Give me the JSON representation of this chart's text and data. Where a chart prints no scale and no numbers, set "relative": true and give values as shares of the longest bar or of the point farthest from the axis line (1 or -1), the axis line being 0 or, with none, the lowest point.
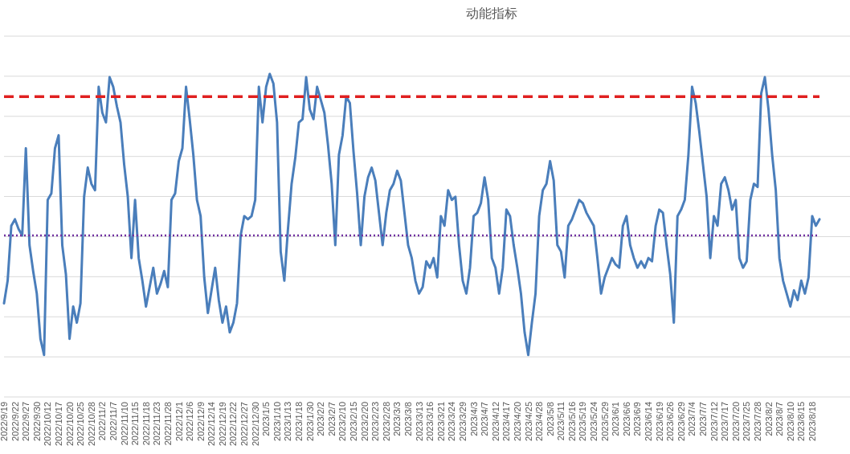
{
  "chart_data": {
    "type": "line",
    "title": "动能指标",
    "relative": true,
    "grid": "y",
    "categories": [
      "2022/9/19",
      null,
      null,
      "2022/9/22",
      null,
      null,
      "2022/9/27",
      null,
      null,
      "2022/9/30",
      null,
      null,
      "2022/10/12",
      null,
      null,
      "2022/10/17",
      null,
      null,
      "2022/10/20",
      null,
      null,
      "2022/10/25",
      null,
      null,
      "2022/10/28",
      null,
      null,
      "2022/11/2",
      null,
      null,
      "2022/11/7",
      null,
      null,
      "2022/11/10",
      null,
      null,
      "2022/11/15",
      null,
      null,
      "2022/11/18",
      null,
      null,
      "2022/11/23",
      null,
      null,
      "2022/11/28",
      null,
      null,
      "2022/12/1",
      null,
      null,
      "2022/12/6",
      null,
      null,
      "2022/12/9",
      null,
      null,
      "2022/12/14",
      null,
      null,
      "2022/12/19",
      null,
      null,
      "2022/12/22",
      null,
      null,
      "2022/12/27",
      null,
      null,
      "2022/12/30",
      null,
      null,
      "2023/1/5",
      null,
      null,
      "2023/1/10",
      null,
      null,
      "2023/1/13",
      null,
      null,
      "2023/1/18",
      null,
      null,
      "2023/1/30",
      null,
      null,
      "2023/2/2",
      null,
      null,
      "2023/2/7",
      null,
      null,
      "2023/2/10",
      null,
      null,
      "2023/2/15",
      null,
      null,
      "2023/2/20",
      null,
      null,
      "2023/2/23",
      null,
      null,
      "2023/2/28",
      null,
      null,
      "2023/3/3",
      null,
      null,
      "2023/3/8",
      null,
      null,
      "2023/3/13",
      null,
      null,
      "2023/3/16",
      null,
      null,
      "2023/3/21",
      null,
      null,
      "2023/3/24",
      null,
      null,
      "2023/3/29",
      null,
      null,
      "2023/4/3",
      null,
      null,
      "2023/4/7",
      null,
      null,
      "2023/4/12",
      null,
      null,
      "2023/4/17",
      null,
      null,
      "2023/4/20",
      null,
      null,
      "2023/4/25",
      null,
      null,
      "2023/4/28",
      null,
      null,
      "2023/5/8",
      null,
      null,
      "2023/5/11",
      null,
      null,
      "2023/5/16",
      null,
      null,
      "2023/5/19",
      null,
      null,
      "2023/5/24",
      null,
      null,
      "2023/5/29",
      null,
      null,
      "2023/6/1",
      null,
      null,
      "2023/6/6",
      null,
      null,
      "2023/6/9",
      null,
      null,
      "2023/6/14",
      null,
      null,
      "2023/6/19",
      null,
      null,
      "2023/6/26",
      null,
      null,
      "2023/6/29",
      null,
      null,
      "2023/7/4",
      null,
      null,
      "2023/7/7",
      null,
      null,
      "2023/7/12",
      null,
      null,
      "2023/7/17",
      null,
      null,
      "2023/7/20",
      null,
      null,
      "2023/7/25",
      null,
      null,
      "2023/7/28",
      null,
      null,
      "2023/8/2",
      null,
      null,
      "2023/8/7",
      null,
      null,
      "2023/8/10",
      null,
      null,
      "2023/8/15",
      null,
      null,
      "2023/8/18",
      null,
      null
    ],
    "series": [
      {
        "color": "#4a7ebb",
        "values": [
          0.29,
          0.36,
          0.53,
          0.55,
          0.52,
          0.5,
          0.77,
          0.47,
          0.39,
          0.32,
          0.18,
          0.13,
          0.61,
          0.63,
          0.77,
          0.81,
          0.47,
          0.38,
          0.18,
          0.28,
          0.23,
          0.29,
          0.62,
          0.71,
          0.66,
          0.64,
          0.96,
          0.88,
          0.85,
          0.99,
          0.96,
          0.9,
          0.85,
          0.72,
          0.62,
          0.43,
          0.61,
          0.43,
          0.36,
          0.28,
          0.34,
          0.4,
          0.32,
          0.35,
          0.39,
          0.34,
          0.61,
          0.63,
          0.73,
          0.77,
          0.96,
          0.86,
          0.75,
          0.61,
          0.56,
          0.37,
          0.26,
          0.33,
          0.4,
          0.3,
          0.23,
          0.28,
          0.2,
          0.23,
          0.29,
          0.5,
          0.56,
          0.55,
          0.56,
          0.61,
          0.96,
          0.85,
          0.96,
          1,
          0.97,
          0.85,
          0.45,
          0.36,
          0.52,
          0.66,
          0.74,
          0.85,
          0.86,
          0.99,
          0.89,
          0.86,
          0.96,
          0.92,
          0.88,
          0.78,
          0.66,
          0.47,
          0.75,
          0.81,
          0.93,
          0.91,
          0.76,
          0.63,
          0.47,
          0.62,
          0.68,
          0.71,
          0.67,
          0.57,
          0.47,
          0.57,
          0.64,
          0.66,
          0.7,
          0.67,
          0.57,
          0.47,
          0.43,
          0.36,
          0.32,
          0.34,
          0.42,
          0.4,
          0.43,
          0.37,
          0.56,
          0.53,
          0.64,
          0.61,
          0.62,
          0.47,
          0.36,
          0.32,
          0.4,
          0.56,
          0.57,
          0.6,
          0.68,
          0.61,
          0.43,
          0.4,
          0.32,
          0.4,
          0.58,
          0.56,
          0.47,
          0.4,
          0.32,
          0.2,
          0.13,
          0.23,
          0.32,
          0.56,
          0.64,
          0.66,
          0.73,
          0.67,
          0.47,
          0.45,
          0.37,
          0.53,
          0.55,
          0.58,
          0.61,
          0.6,
          0.57,
          0.55,
          0.53,
          0.43,
          0.32,
          0.37,
          0.4,
          0.43,
          0.41,
          0.4,
          0.53,
          0.56,
          0.47,
          0.43,
          0.4,
          0.42,
          0.4,
          0.43,
          0.42,
          0.53,
          0.58,
          0.57,
          0.47,
          0.38,
          0.23,
          0.56,
          0.58,
          0.61,
          0.75,
          0.96,
          0.91,
          0.82,
          0.72,
          0.62,
          0.43,
          0.56,
          0.53,
          0.66,
          0.68,
          0.64,
          0.58,
          0.61,
          0.43,
          0.4,
          0.42,
          0.61,
          0.66,
          0.65,
          0.94,
          0.99,
          0.89,
          0.75,
          0.64,
          0.43,
          0.36,
          0.32,
          0.28,
          0.33,
          0.3,
          0.36,
          0.32,
          0.37,
          0.56,
          0.53,
          0.55
        ]
      }
    ],
    "ref_lines": [
      {
        "axis": "y",
        "value": 0.93,
        "color": "#e02020",
        "line_style": "dashed"
      },
      {
        "axis": "y",
        "value": 0.5,
        "color": "#7030a0",
        "line_style": "dotted"
      }
    ]
  }
}
